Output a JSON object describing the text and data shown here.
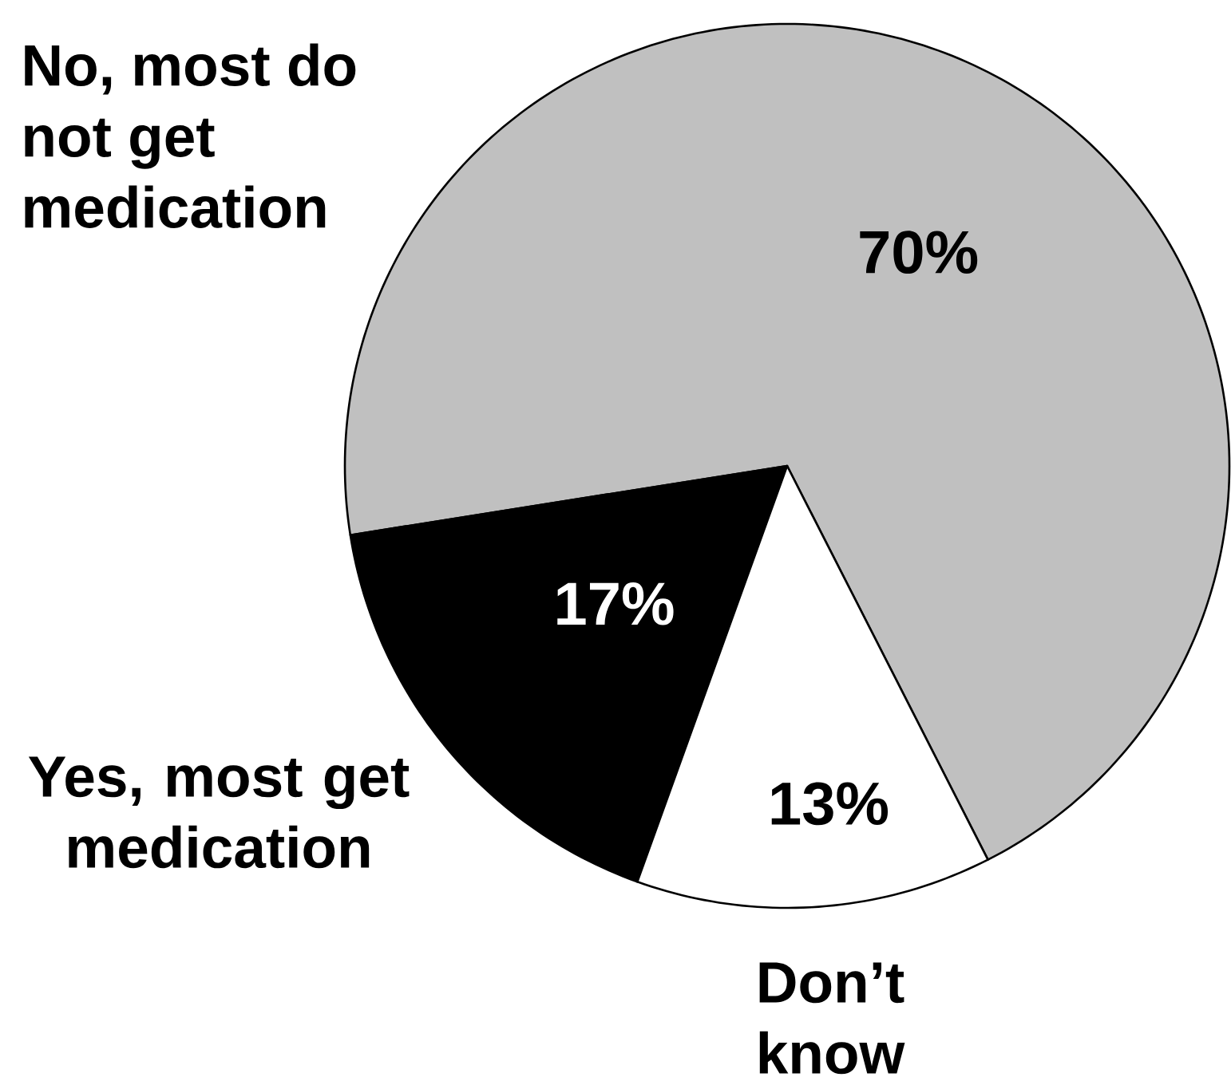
{
  "chart_data": {
    "type": "pie",
    "categories": [
      "No, most do not get medication",
      "Yes, most get medication",
      "Don’t know"
    ],
    "values": [
      70,
      17,
      13
    ],
    "colors": [
      "#c0c0c0",
      "#000000",
      "#ffffff"
    ],
    "value_labels": [
      "70%",
      "17%",
      "13%"
    ]
  }
}
